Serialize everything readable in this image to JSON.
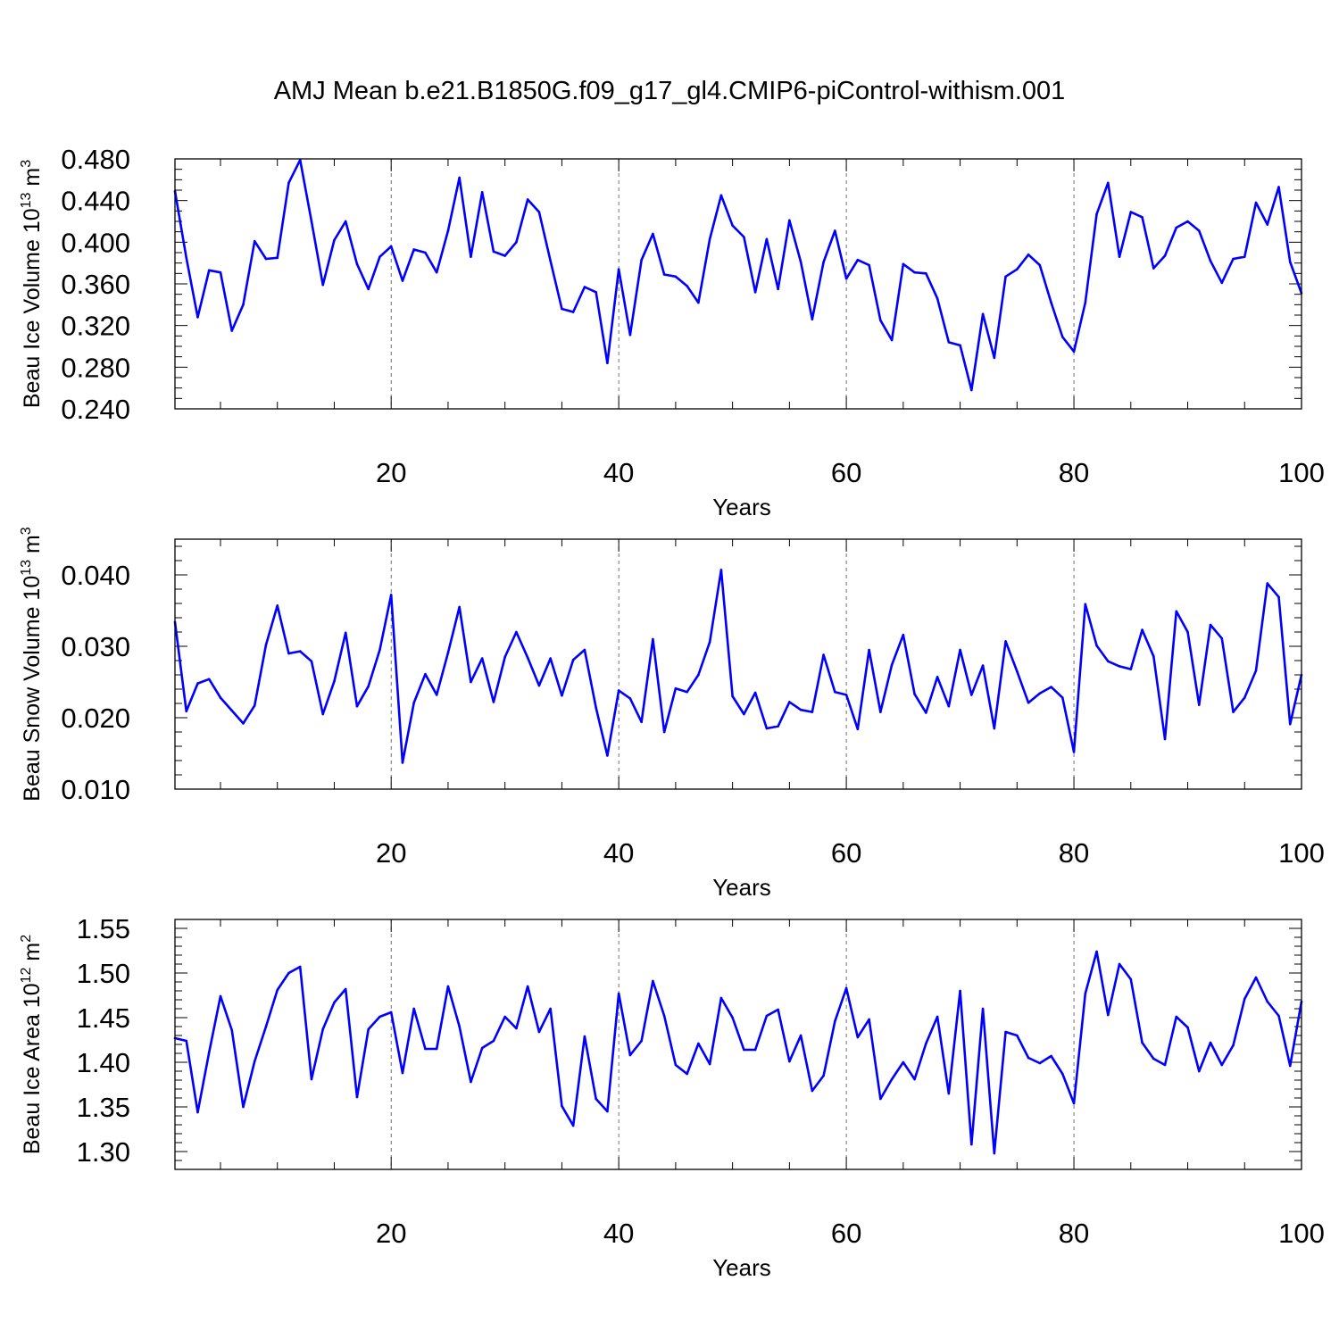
{
  "title": "AMJ Mean b.e21.B1850G.f09_g17_gl4.CMIP6-piControl-withism.001",
  "colors": {
    "line": "#0000ff",
    "axis": "#000000",
    "grid": "#000000"
  },
  "chart_data": [
    {
      "type": "line",
      "xlabel": "Years",
      "ylabel_main": "Beau Ice Volume 10",
      "ylabel_exp": "13",
      "ylabel_unit": "m",
      "ylabel_unit_exp": "3",
      "xlim": [
        1,
        100
      ],
      "ylim": [
        0.24,
        0.48
      ],
      "x_ticks": [
        "20",
        "40",
        "60",
        "80",
        "100"
      ],
      "y_ticks": [
        "0.240",
        "0.280",
        "0.320",
        "0.360",
        "0.400",
        "0.440",
        "0.480"
      ],
      "grid": "vertical dashed at major x ticks",
      "series": [
        {
          "values": [
            0.449,
            0.385,
            0.328,
            0.373,
            0.371,
            0.315,
            0.34,
            0.401,
            0.384,
            0.385,
            0.457,
            0.479,
            0.42,
            0.359,
            0.402,
            0.42,
            0.379,
            0.355,
            0.386,
            0.396,
            0.363,
            0.393,
            0.39,
            0.371,
            0.411,
            0.462,
            0.386,
            0.448,
            0.391,
            0.387,
            0.4,
            0.441,
            0.429,
            0.382,
            0.336,
            0.333,
            0.357,
            0.352,
            0.284,
            0.374,
            0.311,
            0.383,
            0.408,
            0.369,
            0.367,
            0.358,
            0.342,
            0.403,
            0.445,
            0.416,
            0.405,
            0.352,
            0.403,
            0.355,
            0.421,
            0.381,
            0.326,
            0.381,
            0.411,
            0.365,
            0.383,
            0.378,
            0.325,
            0.306,
            0.379,
            0.371,
            0.37,
            0.346,
            0.304,
            0.301,
            0.258,
            0.331,
            0.289,
            0.367,
            0.374,
            0.388,
            0.378,
            0.342,
            0.309,
            0.295,
            0.342,
            0.427,
            0.457,
            0.386,
            0.429,
            0.424,
            0.375,
            0.387,
            0.414,
            0.42,
            0.411,
            0.382,
            0.361,
            0.384,
            0.386,
            0.438,
            0.417,
            0.453,
            0.381,
            0.351
          ]
        }
      ]
    },
    {
      "type": "line",
      "xlabel": "Years",
      "ylabel_main": "Beau Snow Volume 10",
      "ylabel_exp": "13",
      "ylabel_unit": "m",
      "ylabel_unit_exp": "3",
      "xlim": [
        1,
        100
      ],
      "ylim": [
        0.01,
        0.045
      ],
      "x_ticks": [
        "20",
        "40",
        "60",
        "80",
        "100"
      ],
      "y_ticks": [
        "0.010",
        "0.020",
        "0.030",
        "0.040"
      ],
      "grid": "vertical dashed at major x ticks",
      "series": [
        {
          "values": [
            0.0334,
            0.0209,
            0.0248,
            0.0254,
            0.0228,
            0.021,
            0.0192,
            0.0217,
            0.0302,
            0.0357,
            0.029,
            0.0293,
            0.0279,
            0.0205,
            0.0251,
            0.0319,
            0.0216,
            0.0244,
            0.0295,
            0.0372,
            0.0137,
            0.0221,
            0.0261,
            0.0232,
            0.0291,
            0.0355,
            0.025,
            0.0283,
            0.0222,
            0.0285,
            0.032,
            0.0284,
            0.0245,
            0.0283,
            0.0231,
            0.0281,
            0.0295,
            0.0214,
            0.0147,
            0.0238,
            0.0227,
            0.0194,
            0.031,
            0.018,
            0.0241,
            0.0236,
            0.026,
            0.0306,
            0.0407,
            0.023,
            0.0205,
            0.0235,
            0.0185,
            0.0188,
            0.0222,
            0.0211,
            0.0208,
            0.0288,
            0.0236,
            0.0232,
            0.0184,
            0.0295,
            0.0208,
            0.0274,
            0.0316,
            0.0233,
            0.0207,
            0.0257,
            0.0216,
            0.0295,
            0.0232,
            0.0273,
            0.0185,
            0.0307,
            0.0265,
            0.0221,
            0.0234,
            0.0243,
            0.0228,
            0.0152,
            0.0359,
            0.0301,
            0.0279,
            0.0272,
            0.0268,
            0.0323,
            0.0286,
            0.017,
            0.0349,
            0.032,
            0.0218,
            0.033,
            0.0311,
            0.0208,
            0.0228,
            0.0266,
            0.0388,
            0.0369,
            0.0191,
            0.026
          ]
        }
      ]
    },
    {
      "type": "line",
      "xlabel": "Years",
      "ylabel_main": "Beau Ice Area 10",
      "ylabel_exp": "12",
      "ylabel_unit": "m",
      "ylabel_unit_exp": "2",
      "xlim": [
        1,
        100
      ],
      "ylim": [
        1.28,
        1.56
      ],
      "x_ticks": [
        "20",
        "40",
        "60",
        "80",
        "100"
      ],
      "y_ticks": [
        "1.30",
        "1.35",
        "1.40",
        "1.45",
        "1.50",
        "1.55"
      ],
      "grid": "vertical dashed at major x ticks",
      "series": [
        {
          "values": [
            1.427,
            1.424,
            1.344,
            1.411,
            1.474,
            1.436,
            1.35,
            1.401,
            1.44,
            1.481,
            1.5,
            1.507,
            1.381,
            1.437,
            1.467,
            1.482,
            1.361,
            1.437,
            1.451,
            1.456,
            1.388,
            1.46,
            1.415,
            1.415,
            1.485,
            1.44,
            1.378,
            1.416,
            1.424,
            1.451,
            1.438,
            1.485,
            1.434,
            1.46,
            1.351,
            1.329,
            1.429,
            1.359,
            1.345,
            1.477,
            1.408,
            1.424,
            1.491,
            1.452,
            1.397,
            1.387,
            1.421,
            1.398,
            1.472,
            1.45,
            1.414,
            1.414,
            1.452,
            1.459,
            1.401,
            1.43,
            1.368,
            1.385,
            1.446,
            1.483,
            1.428,
            1.448,
            1.359,
            1.381,
            1.4,
            1.381,
            1.421,
            1.451,
            1.365,
            1.48,
            1.308,
            1.46,
            1.298,
            1.434,
            1.43,
            1.405,
            1.399,
            1.407,
            1.387,
            1.354,
            1.477,
            1.524,
            1.453,
            1.51,
            1.493,
            1.422,
            1.404,
            1.397,
            1.451,
            1.439,
            1.39,
            1.422,
            1.397,
            1.419,
            1.471,
            1.495,
            1.468,
            1.452,
            1.396,
            1.468
          ]
        }
      ]
    }
  ]
}
